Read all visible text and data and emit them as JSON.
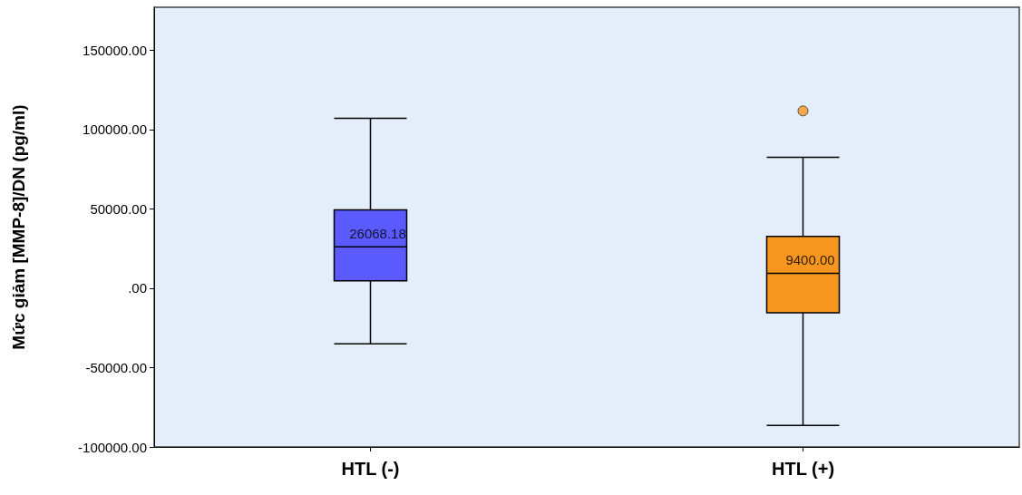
{
  "chart_data": {
    "type": "box",
    "ylabel": "Mức giảm [MMP-8]/DN (pg/ml)",
    "categories": [
      "HTL (-)",
      "HTL (+)"
    ],
    "boxes": [
      {
        "low": -35000,
        "q1": 4600,
        "median": 26068.18,
        "q3": 49300,
        "high": 107000
      },
      {
        "low": -86500,
        "q1": -15500,
        "median": 9400,
        "q3": 32700,
        "high": 82500,
        "outliers": [
          111700
        ]
      }
    ],
    "colors": [
      "#5a5aff",
      "#f7961e"
    ],
    "ylim": [
      -100000,
      177000
    ],
    "yticks": [
      {
        "value": -100000,
        "label": "-100000.00"
      },
      {
        "value": -50000,
        "label": "-50000.00"
      },
      {
        "value": 0,
        "label": ".00"
      },
      {
        "value": 50000,
        "label": "50000.00"
      },
      {
        "value": 100000,
        "label": "100000.00"
      },
      {
        "value": 150000,
        "label": "150000.00"
      }
    ],
    "annotations": [
      {
        "text": "26068.18",
        "x": "HTL (-)",
        "y": 26068.18
      },
      {
        "text": "9400.00",
        "x": "HTL (+)",
        "y": 9400
      }
    ],
    "grid": false
  }
}
